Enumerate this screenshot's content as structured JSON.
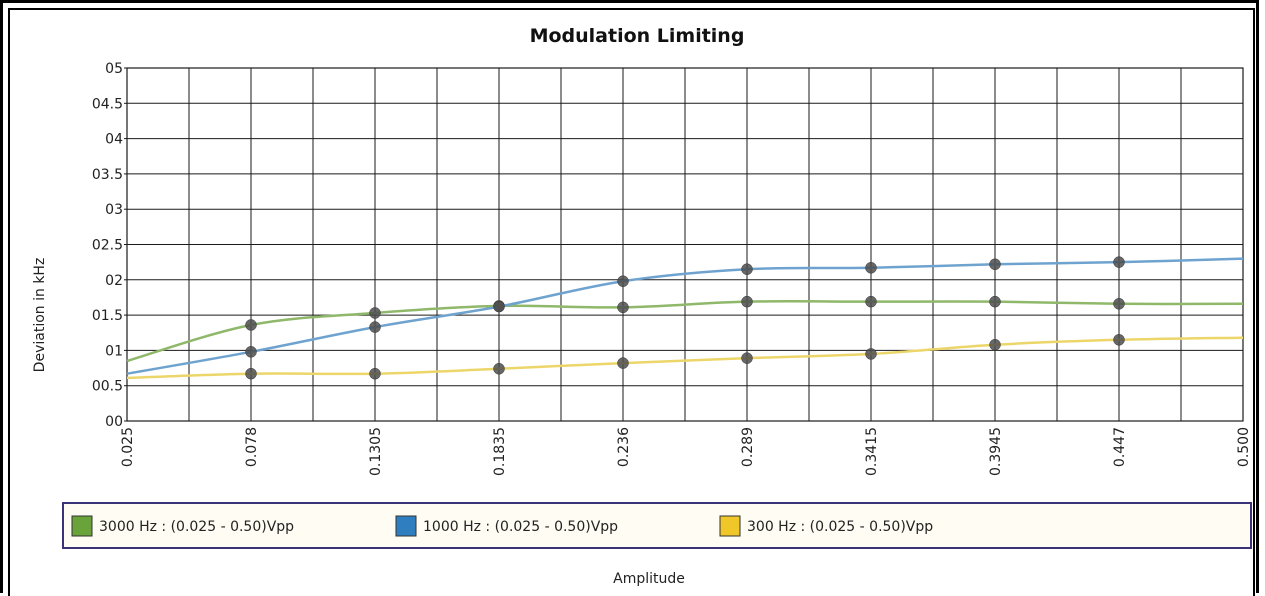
{
  "chart_data": {
    "type": "line",
    "title": "Modulation Limiting",
    "xlabel": "Amplitude",
    "ylabel": "Deviation in kHz",
    "x_ticks": [
      "0.025",
      "0.078",
      "0.1305",
      "0.1835",
      "0.236",
      "0.289",
      "0.3415",
      "0.3945",
      "0.447",
      "0.500"
    ],
    "y_ticks": [
      "00",
      "00.5",
      "01",
      "01.5",
      "02",
      "02.5",
      "03",
      "03.5",
      "04",
      "04.5",
      "05"
    ],
    "ylim": [
      0,
      5
    ],
    "grid": true,
    "legend_position": "bottom",
    "series": [
      {
        "name": "3000 Hz : (0.025 - 0.50)Vpp",
        "color": "#8fb86a",
        "legend_color": "#6aa33a",
        "values": [
          0.85,
          1.36,
          1.53,
          1.63,
          1.61,
          1.69,
          1.69,
          1.69,
          1.66,
          1.66
        ]
      },
      {
        "name": "1000 Hz : (0.025 - 0.50)Vpp",
        "color": "#6fa3cf",
        "legend_color": "#2f7fc0",
        "values": [
          0.67,
          0.98,
          1.33,
          1.62,
          1.98,
          2.15,
          2.17,
          2.22,
          2.25,
          2.3
        ]
      },
      {
        "name": "300 Hz : (0.025 - 0.50)Vpp",
        "color": "#ecd66a",
        "legend_color": "#f0c728",
        "values": [
          0.61,
          0.67,
          0.67,
          0.74,
          0.82,
          0.89,
          0.95,
          1.08,
          1.15,
          1.18
        ]
      }
    ]
  }
}
